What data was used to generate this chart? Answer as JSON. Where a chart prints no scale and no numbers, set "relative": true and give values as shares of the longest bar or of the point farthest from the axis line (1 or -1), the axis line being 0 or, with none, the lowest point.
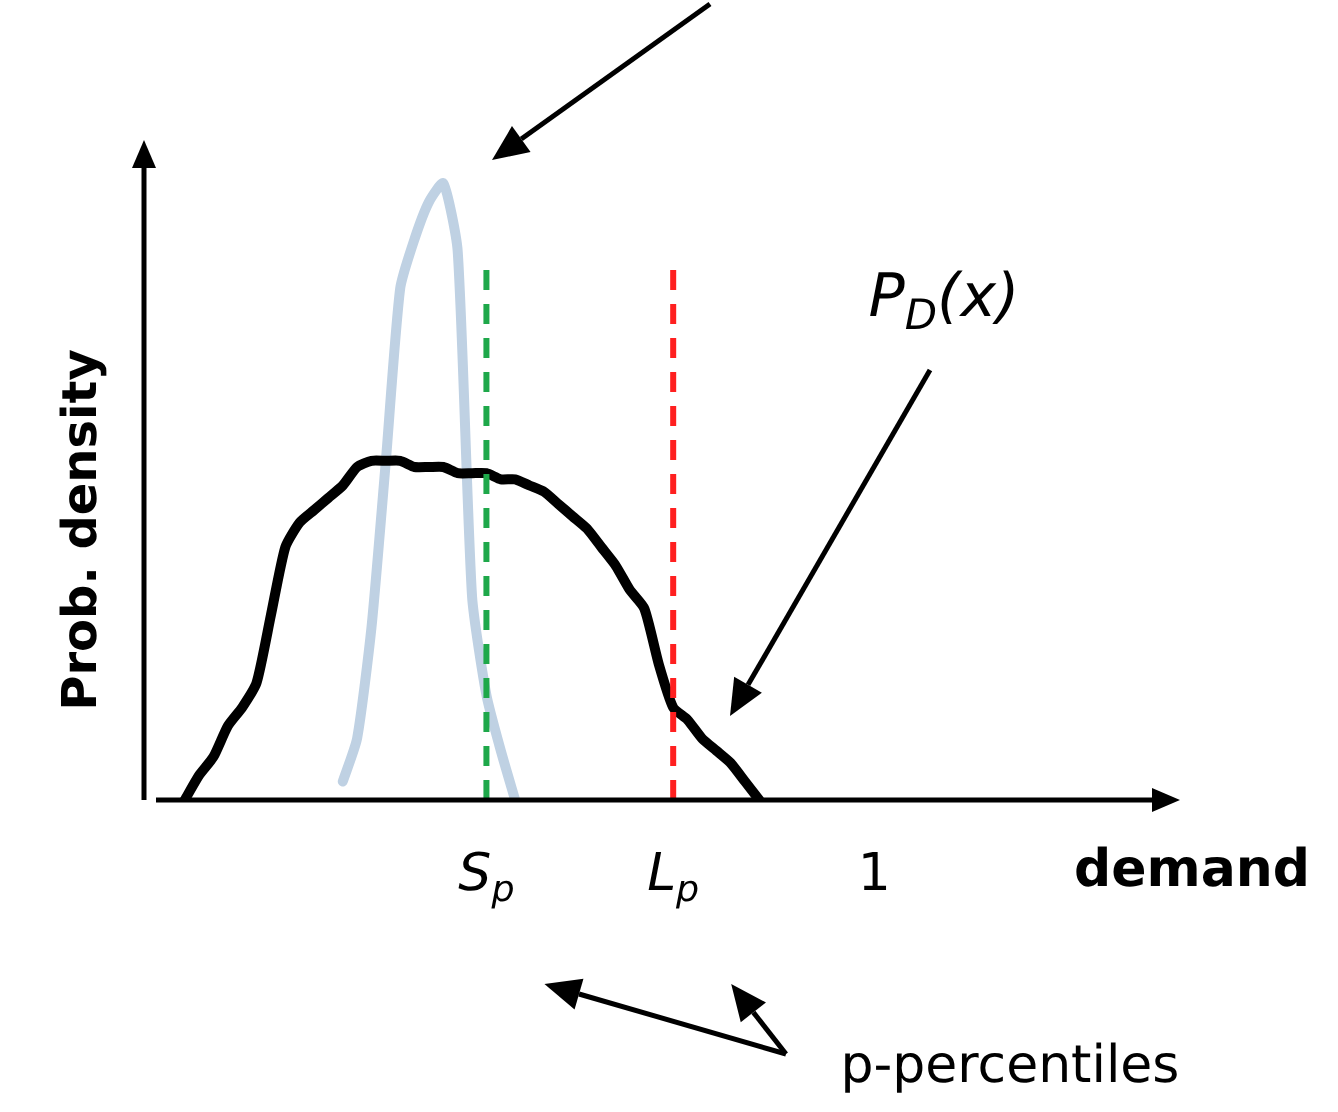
{
  "chart_data": {
    "type": "line",
    "relative": true,
    "xlabel": "demand",
    "ylabel": "Prob. density",
    "categories": [
      null,
      null,
      null,
      null,
      null,
      null,
      null,
      null,
      null,
      null,
      null,
      null,
      null,
      null,
      null,
      null,
      null,
      null,
      null,
      null,
      null,
      null,
      null,
      "S$_{p}$",
      null,
      null,
      null,
      null,
      null,
      null,
      null,
      null,
      null,
      null,
      null,
      null,
      "L$_{p}$",
      null,
      null,
      null,
      null,
      null,
      null,
      null,
      null,
      null,
      null,
      null,
      null,
      null,
      "1",
      null,
      null,
      null,
      null,
      null,
      null,
      null,
      null,
      null,
      null,
      null,
      null,
      null,
      null,
      null,
      null,
      null,
      null,
      null,
      null,
      null
    ],
    "series": [
      {
        "color": "#000000",
        "values": [
          null,
          null,
          0,
          0.04,
          0.07,
          0.12,
          0.15,
          0.19,
          0.3,
          0.41,
          0.45,
          0.47,
          0.49,
          0.51,
          0.54,
          0.55,
          0.55,
          0.55,
          0.54,
          0.54,
          0.54,
          0.53,
          0.53,
          0.53,
          0.52,
          0.52,
          0.51,
          0.5,
          0.48,
          0.46,
          0.44,
          0.41,
          0.38,
          0.34,
          0.31,
          0.22,
          0.15,
          0.13,
          0.1,
          0.08,
          0.06,
          0.03,
          0,
          null,
          null,
          null,
          null,
          null,
          null,
          null,
          null,
          null,
          null,
          null,
          null,
          null,
          null,
          null,
          null,
          null,
          null,
          null,
          null,
          null,
          null,
          null,
          null,
          null,
          null,
          null,
          null,
          null
        ]
      },
      {
        "color": "#bfd1e3",
        "values": [
          null,
          null,
          null,
          null,
          null,
          null,
          null,
          null,
          null,
          null,
          null,
          null,
          null,
          0.03,
          0.1,
          0.28,
          0.55,
          0.83,
          0.91,
          0.97,
          1,
          0.89,
          0.33,
          0.17,
          0.08,
          0,
          null,
          null,
          null,
          null,
          null,
          null,
          null,
          null,
          null,
          null,
          null,
          null,
          null,
          null,
          null,
          null,
          null,
          null,
          null,
          null,
          null,
          null,
          null,
          null,
          null,
          null,
          null,
          null,
          null,
          null,
          null,
          null,
          null,
          null,
          null,
          null,
          null,
          null,
          null,
          null,
          null,
          null,
          null,
          null,
          null,
          null
        ]
      }
    ],
    "ref_lines": [
      {
        "axis": "x",
        "value": "S$_{p}$",
        "color": "#1ea84a",
        "line_style": "dashed"
      },
      {
        "axis": "x",
        "value": "L$_{p}$",
        "color": "#ff2020",
        "line_style": "dashed"
      }
    ],
    "annotations": [
      "P$_{D}$(x)",
      "p-percentiles"
    ]
  }
}
